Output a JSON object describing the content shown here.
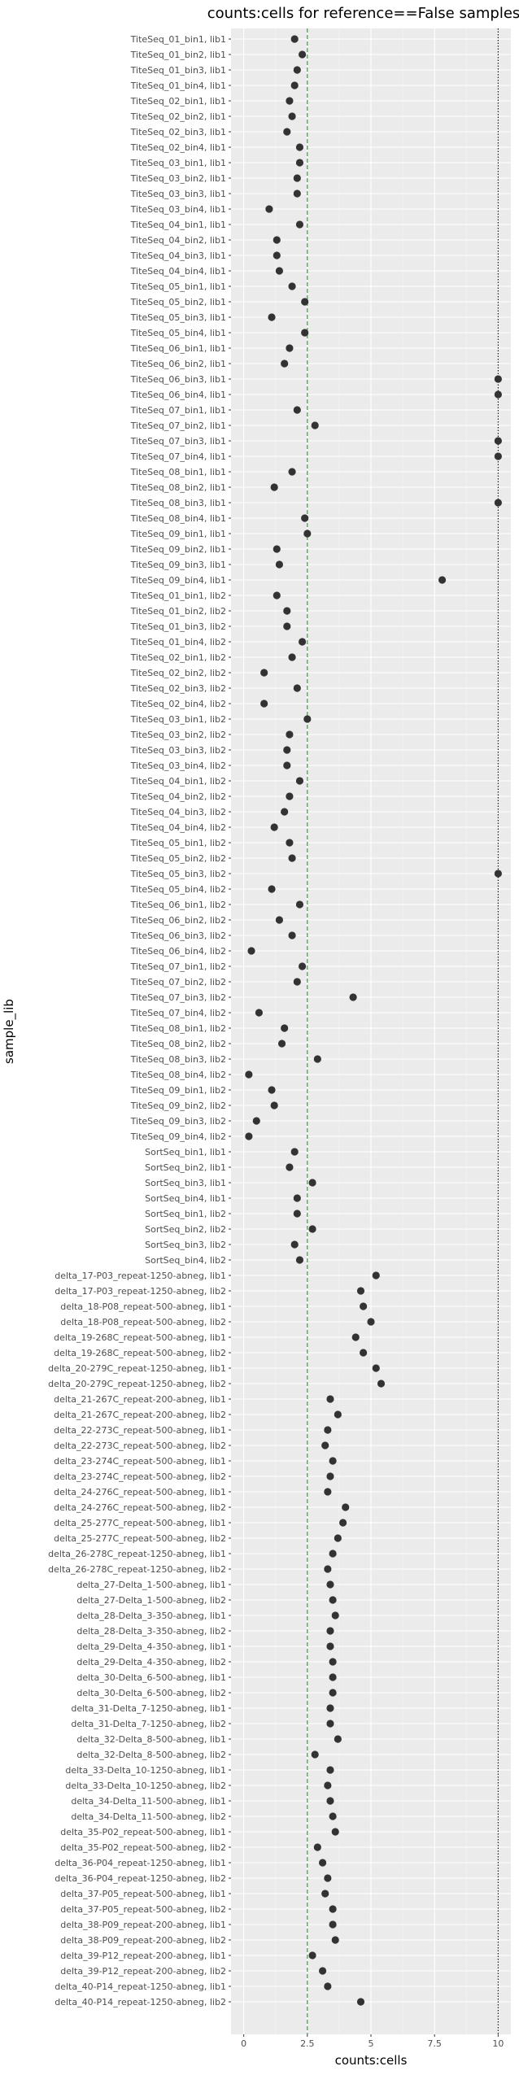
{
  "chart_data": {
    "type": "scatter",
    "title": "counts:cells for reference==False samples",
    "xlabel": "counts:cells",
    "ylabel": "sample_lib",
    "xlim": [
      -0.5,
      10.5
    ],
    "xticks": [
      0,
      2.5,
      5,
      7.5,
      10
    ],
    "xtick_labels": [
      "0",
      "2.5",
      "5",
      "7.5",
      "10"
    ],
    "reference_lines": [
      {
        "x": 2.5,
        "style": "dashed",
        "color": "#1a9a1a"
      },
      {
        "x": 10,
        "style": "dotted",
        "color": "#000000"
      }
    ],
    "grid": true,
    "point_color": "#333333",
    "categories": [
      "TiteSeq_01_bin1, lib1",
      "TiteSeq_01_bin2, lib1",
      "TiteSeq_01_bin3, lib1",
      "TiteSeq_01_bin4, lib1",
      "TiteSeq_02_bin1, lib1",
      "TiteSeq_02_bin2, lib1",
      "TiteSeq_02_bin3, lib1",
      "TiteSeq_02_bin4, lib1",
      "TiteSeq_03_bin1, lib1",
      "TiteSeq_03_bin2, lib1",
      "TiteSeq_03_bin3, lib1",
      "TiteSeq_03_bin4, lib1",
      "TiteSeq_04_bin1, lib1",
      "TiteSeq_04_bin2, lib1",
      "TiteSeq_04_bin3, lib1",
      "TiteSeq_04_bin4, lib1",
      "TiteSeq_05_bin1, lib1",
      "TiteSeq_05_bin2, lib1",
      "TiteSeq_05_bin3, lib1",
      "TiteSeq_05_bin4, lib1",
      "TiteSeq_06_bin1, lib1",
      "TiteSeq_06_bin2, lib1",
      "TiteSeq_06_bin3, lib1",
      "TiteSeq_06_bin4, lib1",
      "TiteSeq_07_bin1, lib1",
      "TiteSeq_07_bin2, lib1",
      "TiteSeq_07_bin3, lib1",
      "TiteSeq_07_bin4, lib1",
      "TiteSeq_08_bin1, lib1",
      "TiteSeq_08_bin2, lib1",
      "TiteSeq_08_bin3, lib1",
      "TiteSeq_08_bin4, lib1",
      "TiteSeq_09_bin1, lib1",
      "TiteSeq_09_bin2, lib1",
      "TiteSeq_09_bin3, lib1",
      "TiteSeq_09_bin4, lib1",
      "TiteSeq_01_bin1, lib2",
      "TiteSeq_01_bin2, lib2",
      "TiteSeq_01_bin3, lib2",
      "TiteSeq_01_bin4, lib2",
      "TiteSeq_02_bin1, lib2",
      "TiteSeq_02_bin2, lib2",
      "TiteSeq_02_bin3, lib2",
      "TiteSeq_02_bin4, lib2",
      "TiteSeq_03_bin1, lib2",
      "TiteSeq_03_bin2, lib2",
      "TiteSeq_03_bin3, lib2",
      "TiteSeq_03_bin4, lib2",
      "TiteSeq_04_bin1, lib2",
      "TiteSeq_04_bin2, lib2",
      "TiteSeq_04_bin3, lib2",
      "TiteSeq_04_bin4, lib2",
      "TiteSeq_05_bin1, lib2",
      "TiteSeq_05_bin2, lib2",
      "TiteSeq_05_bin3, lib2",
      "TiteSeq_05_bin4, lib2",
      "TiteSeq_06_bin1, lib2",
      "TiteSeq_06_bin2, lib2",
      "TiteSeq_06_bin3, lib2",
      "TiteSeq_06_bin4, lib2",
      "TiteSeq_07_bin1, lib2",
      "TiteSeq_07_bin2, lib2",
      "TiteSeq_07_bin3, lib2",
      "TiteSeq_07_bin4, lib2",
      "TiteSeq_08_bin1, lib2",
      "TiteSeq_08_bin2, lib2",
      "TiteSeq_08_bin3, lib2",
      "TiteSeq_08_bin4, lib2",
      "TiteSeq_09_bin1, lib2",
      "TiteSeq_09_bin2, lib2",
      "TiteSeq_09_bin3, lib2",
      "TiteSeq_09_bin4, lib2",
      "SortSeq_bin1, lib1",
      "SortSeq_bin2, lib1",
      "SortSeq_bin3, lib1",
      "SortSeq_bin4, lib1",
      "SortSeq_bin1, lib2",
      "SortSeq_bin2, lib2",
      "SortSeq_bin3, lib2",
      "SortSeq_bin4, lib2",
      "delta_17-P03_repeat-1250-abneg, lib1",
      "delta_17-P03_repeat-1250-abneg, lib2",
      "delta_18-P08_repeat-500-abneg, lib1",
      "delta_18-P08_repeat-500-abneg, lib2",
      "delta_19-268C_repeat-500-abneg, lib1",
      "delta_19-268C_repeat-500-abneg, lib2",
      "delta_20-279C_repeat-1250-abneg, lib1",
      "delta_20-279C_repeat-1250-abneg, lib2",
      "delta_21-267C_repeat-200-abneg, lib1",
      "delta_21-267C_repeat-200-abneg, lib2",
      "delta_22-273C_repeat-500-abneg, lib1",
      "delta_22-273C_repeat-500-abneg, lib2",
      "delta_23-274C_repeat-500-abneg, lib1",
      "delta_23-274C_repeat-500-abneg, lib2",
      "delta_24-276C_repeat-500-abneg, lib1",
      "delta_24-276C_repeat-500-abneg, lib2",
      "delta_25-277C_repeat-500-abneg, lib1",
      "delta_25-277C_repeat-500-abneg, lib2",
      "delta_26-278C_repeat-1250-abneg, lib1",
      "delta_26-278C_repeat-1250-abneg, lib2",
      "delta_27-Delta_1-500-abneg, lib1",
      "delta_27-Delta_1-500-abneg, lib2",
      "delta_28-Delta_3-350-abneg, lib1",
      "delta_28-Delta_3-350-abneg, lib2",
      "delta_29-Delta_4-350-abneg, lib1",
      "delta_29-Delta_4-350-abneg, lib2",
      "delta_30-Delta_6-500-abneg, lib1",
      "delta_30-Delta_6-500-abneg, lib2",
      "delta_31-Delta_7-1250-abneg, lib1",
      "delta_31-Delta_7-1250-abneg, lib2",
      "delta_32-Delta_8-500-abneg, lib1",
      "delta_32-Delta_8-500-abneg, lib2",
      "delta_33-Delta_10-1250-abneg, lib1",
      "delta_33-Delta_10-1250-abneg, lib2",
      "delta_34-Delta_11-500-abneg, lib1",
      "delta_34-Delta_11-500-abneg, lib2",
      "delta_35-P02_repeat-500-abneg, lib1",
      "delta_35-P02_repeat-500-abneg, lib2",
      "delta_36-P04_repeat-1250-abneg, lib1",
      "delta_36-P04_repeat-1250-abneg, lib2",
      "delta_37-P05_repeat-500-abneg, lib1",
      "delta_37-P05_repeat-500-abneg, lib2",
      "delta_38-P09_repeat-200-abneg, lib1",
      "delta_38-P09_repeat-200-abneg, lib2",
      "delta_39-P12_repeat-200-abneg, lib1",
      "delta_39-P12_repeat-200-abneg, lib2",
      "delta_40-P14_repeat-1250-abneg, lib1",
      "delta_40-P14_repeat-1250-abneg, lib2"
    ],
    "values": [
      2.0,
      2.3,
      2.1,
      2.0,
      1.8,
      1.9,
      1.7,
      2.2,
      2.2,
      2.1,
      2.1,
      1.0,
      2.2,
      1.3,
      1.3,
      1.4,
      1.9,
      2.4,
      1.1,
      2.4,
      1.8,
      1.6,
      10.0,
      10.0,
      2.1,
      2.8,
      10.0,
      10.0,
      1.9,
      1.2,
      10.0,
      2.4,
      2.5,
      1.3,
      1.4,
      7.8,
      1.3,
      1.7,
      1.7,
      2.3,
      1.9,
      0.8,
      2.1,
      0.8,
      2.5,
      1.8,
      1.7,
      1.7,
      2.2,
      1.8,
      1.6,
      1.2,
      1.8,
      1.9,
      10.0,
      1.1,
      2.2,
      1.4,
      1.9,
      0.3,
      2.3,
      2.1,
      4.3,
      0.6,
      1.6,
      1.5,
      2.9,
      0.2,
      1.1,
      1.2,
      0.5,
      0.2,
      2.0,
      1.8,
      2.7,
      2.1,
      2.1,
      2.7,
      2.0,
      2.2,
      5.2,
      4.6,
      4.7,
      5.0,
      4.4,
      4.7,
      5.2,
      5.4,
      3.4,
      3.7,
      3.3,
      3.2,
      3.5,
      3.4,
      3.3,
      4.0,
      3.9,
      3.7,
      3.5,
      3.3,
      3.4,
      3.5,
      3.6,
      3.4,
      3.4,
      3.5,
      3.5,
      3.5,
      3.4,
      3.4,
      3.7,
      2.8,
      3.4,
      3.3,
      3.4,
      3.5,
      3.6,
      2.9,
      3.1,
      3.3,
      3.2,
      3.5,
      3.5,
      3.6,
      2.7,
      3.1,
      3.3,
      4.6
    ]
  }
}
